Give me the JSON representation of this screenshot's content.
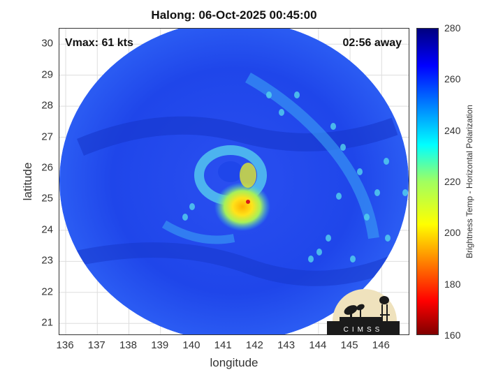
{
  "title": "Halong: 06-Oct-2025 00:45:00",
  "vmax_label": "Vmax: 61 kts",
  "away_label": "02:56 away",
  "xlabel": "longitude",
  "ylabel": "latitude",
  "colorbar_label": "Brightness Temp - Horizontal Polarization",
  "logo_text": "CIMSS",
  "chart_data": {
    "type": "heatmap",
    "title": "Halong: 06-Oct-2025 00:45:00",
    "xlabel": "longitude",
    "ylabel": "latitude",
    "xlim": [
      135.8,
      146.9
    ],
    "ylim": [
      20.6,
      30.5
    ],
    "xticks": [
      "136",
      "137",
      "138",
      "139",
      "140",
      "141",
      "142",
      "143",
      "144",
      "145",
      "146"
    ],
    "yticks": [
      "21",
      "22",
      "23",
      "24",
      "25",
      "26",
      "27",
      "28",
      "29",
      "30"
    ],
    "colorbar": {
      "label": "Brightness Temp - Horizontal Polarization",
      "range": [
        160,
        280
      ],
      "ticks": [
        "160",
        "180",
        "200",
        "220",
        "240",
        "260",
        "280"
      ]
    },
    "swath_center": [
      141.3,
      25.0
    ],
    "storm_center": [
      141.8,
      25.3
    ],
    "grid": true
  },
  "colors": {
    "background_blue": "#1a3fe0",
    "dark_blue": "#0f2aa0",
    "cyan": "#33d6e0",
    "yellow": "#ffd21a",
    "orange": "#ff8a00",
    "red": "#d61a1a"
  }
}
